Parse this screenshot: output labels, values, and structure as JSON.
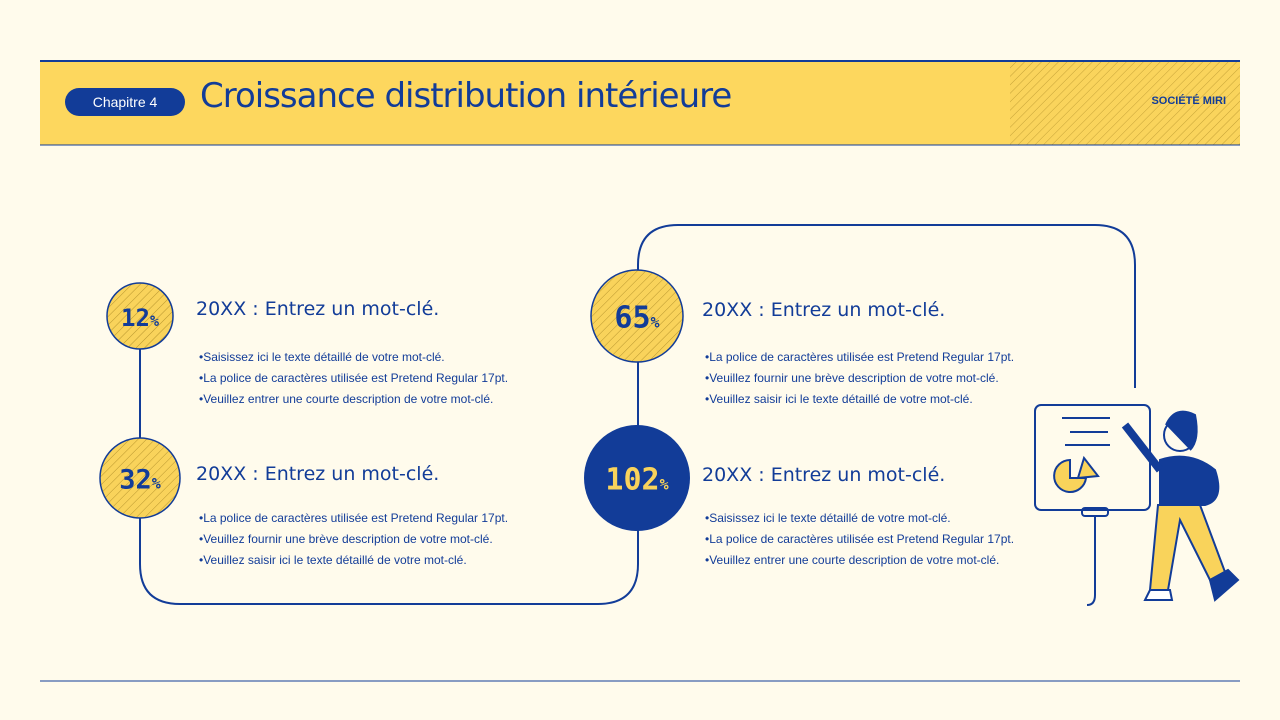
{
  "header": {
    "chapter": "Chapitre 4",
    "title": "Croissance distribution intérieure",
    "company": "SOCIÉTÉ MIRI"
  },
  "items": [
    {
      "value": "12",
      "unit": "%",
      "heading": "20XX : Entrez un mot-clé.",
      "bullets": [
        "Saisissez ici le texte détaillé de votre mot-clé.",
        "La police de caractères utilisée est Pretend Regular 17pt.",
        "Veuillez entrer une courte description de votre mot-clé."
      ]
    },
    {
      "value": "32",
      "unit": "%",
      "heading": "20XX : Entrez un mot-clé.",
      "bullets": [
        "La police de caractères utilisée est Pretend Regular 17pt.",
        "Veuillez fournir une brève description de votre mot-clé.",
        "Veuillez saisir ici le texte détaillé de votre mot-clé."
      ]
    },
    {
      "value": "65",
      "unit": "%",
      "heading": "20XX : Entrez un mot-clé.",
      "bullets": [
        "La police de caractères utilisée est Pretend Regular 17pt.",
        "Veuillez fournir une brève description de votre mot-clé.",
        "Veuillez saisir ici le texte détaillé de votre mot-clé."
      ]
    },
    {
      "value": "102",
      "unit": "%",
      "heading": "20XX : Entrez un mot-clé.",
      "bullets": [
        "Saisissez ici le texte détaillé de votre mot-clé.",
        "La police de caractères utilisée est Pretend Regular 17pt.",
        "Veuillez entrer une courte description de votre mot-clé."
      ]
    }
  ]
}
